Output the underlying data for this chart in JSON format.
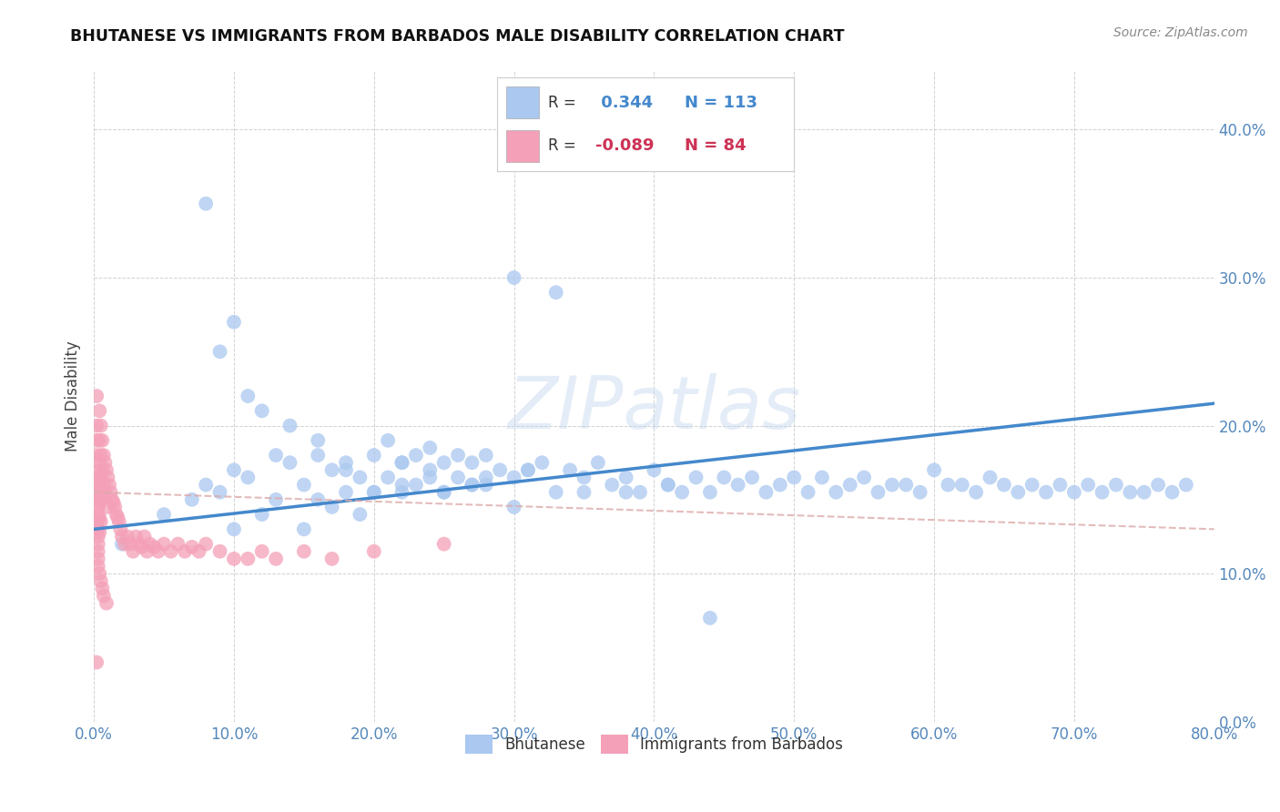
{
  "title": "BHUTANESE VS IMMIGRANTS FROM BARBADOS MALE DISABILITY CORRELATION CHART",
  "source": "Source: ZipAtlas.com",
  "ylabel": "Male Disability",
  "watermark": "ZIPatlas",
  "legend_labels": [
    "Bhutanese",
    "Immigrants from Barbados"
  ],
  "blue_R": 0.344,
  "blue_N": 113,
  "pink_R": -0.089,
  "pink_N": 84,
  "blue_color": "#aac8f0",
  "pink_color": "#f4a0b8",
  "blue_line_color": "#4488cc",
  "pink_line_color": "#ddaaaa",
  "xlim": [
    0.0,
    0.8
  ],
  "ylim": [
    0.0,
    0.44
  ],
  "xticks": [
    0.0,
    0.1,
    0.2,
    0.3,
    0.4,
    0.5,
    0.6,
    0.7,
    0.8
  ],
  "yticks": [
    0.0,
    0.1,
    0.2,
    0.3,
    0.4
  ],
  "blue_x": [
    0.02,
    0.05,
    0.07,
    0.08,
    0.09,
    0.1,
    0.1,
    0.11,
    0.12,
    0.13,
    0.13,
    0.14,
    0.15,
    0.15,
    0.16,
    0.16,
    0.17,
    0.17,
    0.18,
    0.18,
    0.19,
    0.19,
    0.2,
    0.2,
    0.21,
    0.21,
    0.22,
    0.22,
    0.23,
    0.23,
    0.24,
    0.24,
    0.25,
    0.25,
    0.26,
    0.27,
    0.27,
    0.28,
    0.28,
    0.29,
    0.3,
    0.3,
    0.31,
    0.32,
    0.33,
    0.34,
    0.35,
    0.36,
    0.37,
    0.38,
    0.39,
    0.4,
    0.41,
    0.42,
    0.43,
    0.44,
    0.45,
    0.46,
    0.47,
    0.48,
    0.49,
    0.5,
    0.51,
    0.52,
    0.53,
    0.54,
    0.55,
    0.56,
    0.57,
    0.58,
    0.59,
    0.6,
    0.61,
    0.62,
    0.63,
    0.64,
    0.65,
    0.66,
    0.67,
    0.68,
    0.69,
    0.7,
    0.71,
    0.72,
    0.73,
    0.74,
    0.75,
    0.76,
    0.77,
    0.78,
    0.08,
    0.09,
    0.1,
    0.11,
    0.12,
    0.14,
    0.16,
    0.18,
    0.2,
    0.22,
    0.25,
    0.27,
    0.3,
    0.33,
    0.22,
    0.24,
    0.26,
    0.28,
    0.31,
    0.35,
    0.38,
    0.41,
    0.44
  ],
  "blue_y": [
    0.12,
    0.14,
    0.15,
    0.16,
    0.155,
    0.17,
    0.13,
    0.165,
    0.14,
    0.18,
    0.15,
    0.175,
    0.16,
    0.13,
    0.18,
    0.15,
    0.17,
    0.145,
    0.175,
    0.155,
    0.165,
    0.14,
    0.18,
    0.155,
    0.19,
    0.165,
    0.175,
    0.155,
    0.18,
    0.16,
    0.185,
    0.165,
    0.175,
    0.155,
    0.18,
    0.175,
    0.16,
    0.18,
    0.165,
    0.17,
    0.165,
    0.145,
    0.17,
    0.175,
    0.155,
    0.17,
    0.155,
    0.175,
    0.16,
    0.165,
    0.155,
    0.17,
    0.16,
    0.155,
    0.165,
    0.155,
    0.165,
    0.16,
    0.165,
    0.155,
    0.16,
    0.165,
    0.155,
    0.165,
    0.155,
    0.16,
    0.165,
    0.155,
    0.16,
    0.16,
    0.155,
    0.17,
    0.16,
    0.16,
    0.155,
    0.165,
    0.16,
    0.155,
    0.16,
    0.155,
    0.16,
    0.155,
    0.16,
    0.155,
    0.16,
    0.155,
    0.155,
    0.16,
    0.155,
    0.16,
    0.35,
    0.25,
    0.27,
    0.22,
    0.21,
    0.2,
    0.19,
    0.17,
    0.155,
    0.16,
    0.155,
    0.16,
    0.3,
    0.29,
    0.175,
    0.17,
    0.165,
    0.16,
    0.17,
    0.165,
    0.155,
    0.16,
    0.07
  ],
  "pink_x": [
    0.002,
    0.002,
    0.002,
    0.002,
    0.002,
    0.003,
    0.003,
    0.003,
    0.003,
    0.003,
    0.003,
    0.003,
    0.003,
    0.003,
    0.003,
    0.003,
    0.003,
    0.003,
    0.004,
    0.004,
    0.004,
    0.004,
    0.004,
    0.004,
    0.004,
    0.004,
    0.005,
    0.005,
    0.005,
    0.005,
    0.005,
    0.005,
    0.006,
    0.006,
    0.006,
    0.006,
    0.007,
    0.007,
    0.007,
    0.008,
    0.008,
    0.009,
    0.009,
    0.01,
    0.01,
    0.011,
    0.012,
    0.013,
    0.014,
    0.015,
    0.016,
    0.017,
    0.018,
    0.019,
    0.02,
    0.022,
    0.024,
    0.026,
    0.028,
    0.03,
    0.032,
    0.034,
    0.036,
    0.038,
    0.04,
    0.043,
    0.046,
    0.05,
    0.055,
    0.06,
    0.065,
    0.07,
    0.075,
    0.08,
    0.09,
    0.1,
    0.11,
    0.12,
    0.13,
    0.15,
    0.17,
    0.2,
    0.25,
    0.002
  ],
  "pink_y": [
    0.22,
    0.2,
    0.19,
    0.18,
    0.17,
    0.165,
    0.16,
    0.155,
    0.15,
    0.145,
    0.14,
    0.135,
    0.13,
    0.125,
    0.12,
    0.115,
    0.11,
    0.105,
    0.21,
    0.19,
    0.175,
    0.16,
    0.148,
    0.138,
    0.128,
    0.1,
    0.2,
    0.18,
    0.165,
    0.15,
    0.135,
    0.095,
    0.19,
    0.17,
    0.155,
    0.09,
    0.18,
    0.16,
    0.085,
    0.175,
    0.155,
    0.17,
    0.08,
    0.165,
    0.145,
    0.16,
    0.155,
    0.15,
    0.148,
    0.145,
    0.14,
    0.138,
    0.135,
    0.13,
    0.125,
    0.12,
    0.125,
    0.12,
    0.115,
    0.125,
    0.12,
    0.118,
    0.125,
    0.115,
    0.12,
    0.118,
    0.115,
    0.12,
    0.115,
    0.12,
    0.115,
    0.118,
    0.115,
    0.12,
    0.115,
    0.11,
    0.11,
    0.115,
    0.11,
    0.115,
    0.11,
    0.115,
    0.12,
    0.04
  ]
}
